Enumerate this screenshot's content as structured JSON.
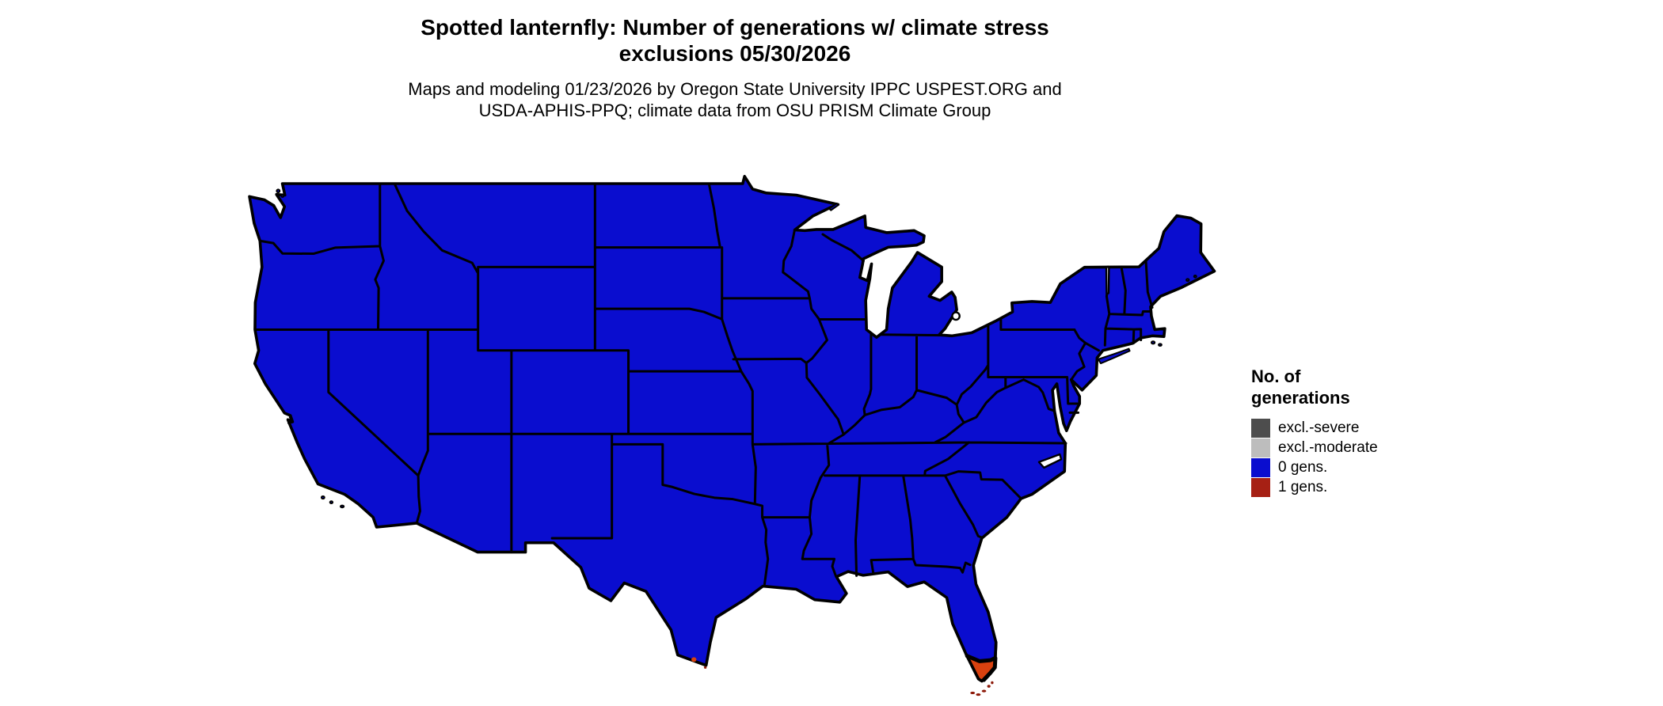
{
  "header": {
    "title_line1": "Spotted lanternfly: Number of generations w/ climate stress",
    "title_line2": "exclusions 05/30/2026",
    "subtitle_line1": "Maps and modeling 01/23/2026 by Oregon State University IPPC USPEST.ORG and",
    "subtitle_line2": "USDA-APHIS-PPQ; climate data from OSU PRISM Climate Group"
  },
  "legend": {
    "title_line1": "No. of",
    "title_line2": "generations",
    "items": [
      {
        "label": "excl.-severe",
        "color": "#4d4d4d"
      },
      {
        "label": "excl.-moderate",
        "color": "#bdbdbd"
      },
      {
        "label": "0 gens.",
        "color": "#0a0dcf"
      },
      {
        "label": "1 gens.",
        "color": "#a62014"
      }
    ]
  },
  "colors": {
    "map_blue": "#0a0dcf",
    "map_red_bright": "#d9410f",
    "map_red_dark": "#8c1808",
    "state_border": "#000000",
    "water": "#ffffff"
  },
  "map": {
    "region": "Contiguous United States",
    "default_category": "0 gens.",
    "one_gen_areas": [
      "southern Florida peninsula",
      "Florida Keys",
      "southern tip of Texas"
    ]
  }
}
